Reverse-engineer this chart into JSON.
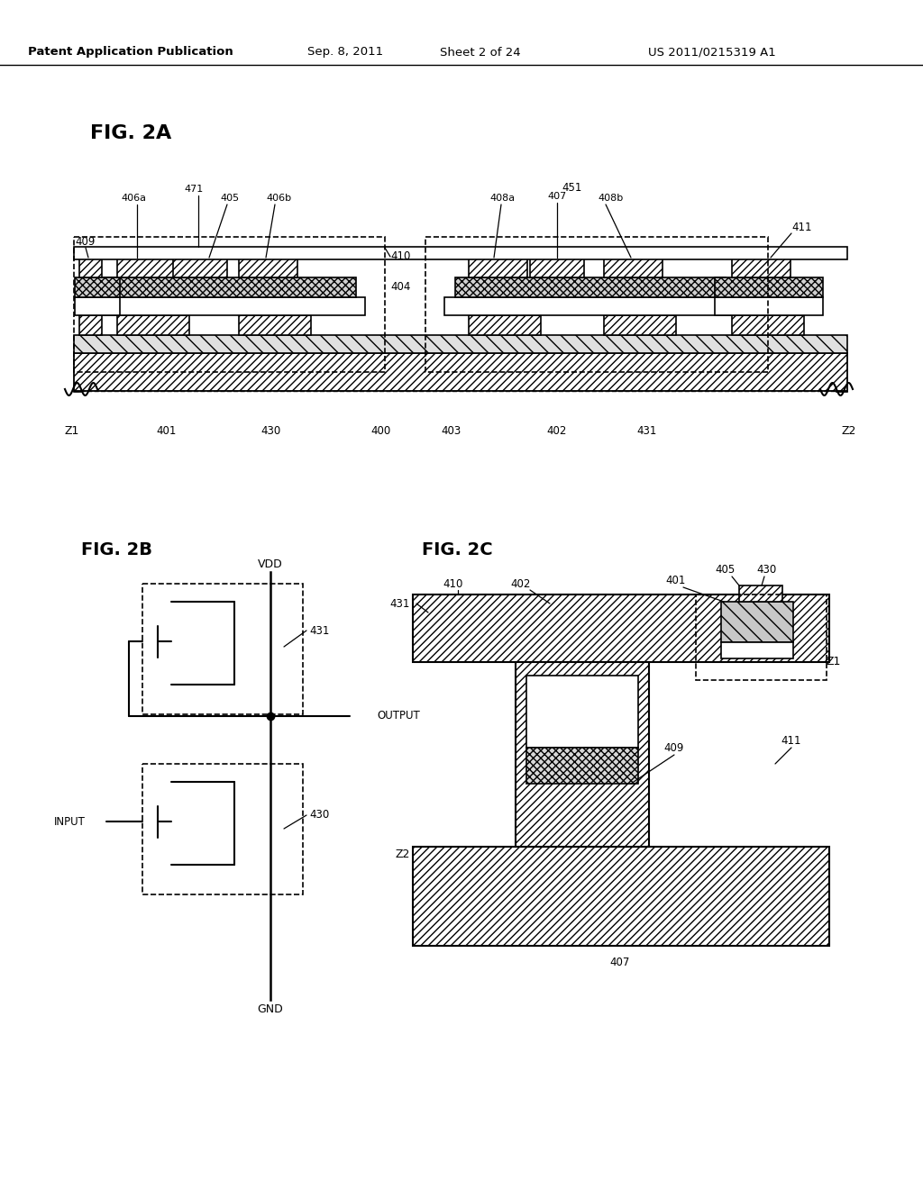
{
  "bg_color": "#ffffff",
  "header_text": "Patent Application Publication",
  "header_date": "Sep. 8, 2011",
  "header_sheet": "Sheet 2 of 24",
  "header_patent": "US 2011/0215319 A1",
  "fig2a_label": "FIG. 2A",
  "fig2b_label": "FIG. 2B",
  "fig2c_label": "FIG. 2C"
}
